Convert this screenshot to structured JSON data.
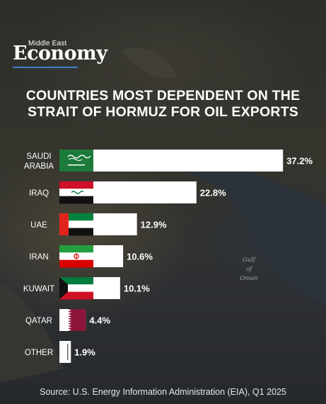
{
  "brand": {
    "small": "Middle East",
    "big": "Economy",
    "accent_color": "#3d7fd1"
  },
  "title_lines": [
    "COUNTRIES MOST DEPENDENT ON THE",
    "STRAIT OF HORMUZ FOR OIL EXPORTS"
  ],
  "map_label": [
    "Gulf",
    "of",
    "Oman"
  ],
  "source": "Source: U.S. Energy Information Administration (EIA), Q1 2025",
  "chart_data": {
    "type": "bar",
    "orientation": "horizontal",
    "title": "COUNTRIES MOST DEPENDENT ON THE STRAIT OF HORMUZ FOR OIL EXPORTS",
    "xlabel": "",
    "ylabel": "",
    "unit": "%",
    "grid": false,
    "categories": [
      [
        "SAUDI",
        "ARABIA"
      ],
      [
        "IRAQ"
      ],
      [
        "UAE"
      ],
      [
        "IRAN"
      ],
      [
        "KUWAIT"
      ],
      [
        "QATAR"
      ],
      [
        "OTHER"
      ]
    ],
    "values": [
      37.2,
      22.8,
      12.9,
      10.6,
      10.1,
      4.4,
      1.9
    ],
    "value_labels": [
      "37.2%",
      "22.8%",
      "12.9%",
      "10.6%",
      "10.1%",
      "4.4%",
      "1.9%"
    ],
    "flags": [
      "saudi-arabia",
      "iraq",
      "uae",
      "iran",
      "kuwait",
      "qatar",
      "other"
    ],
    "bar_color": "#ffffff"
  },
  "colors": {
    "saudi_green": "#1c7a3a",
    "iraq_red": "#ce1126",
    "iraq_green": "#007a3d",
    "uae_red": "#e2231a",
    "uae_green": "#00843d",
    "iran_green": "#239f40",
    "iran_red": "#da0000",
    "kuwait_green": "#007a3d",
    "kuwait_red": "#ce1126",
    "qatar_maroon": "#8a1538",
    "black": "#111111"
  }
}
